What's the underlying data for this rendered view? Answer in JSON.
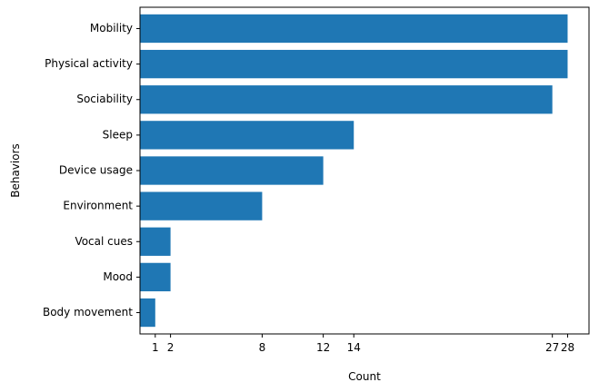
{
  "chart_data": {
    "type": "bar",
    "orientation": "horizontal",
    "categories": [
      "Mobility",
      "Physical activity",
      "Sociability",
      "Sleep",
      "Device usage",
      "Environment",
      "Vocal cues",
      "Mood",
      "Body movement"
    ],
    "values": [
      28,
      28,
      27,
      14,
      12,
      8,
      2,
      2,
      1
    ],
    "xticks": [
      1,
      2,
      8,
      12,
      14,
      27,
      28
    ],
    "xlabel": "Count",
    "ylabel": "Behaviors",
    "xlim": [
      0,
      29.4
    ],
    "grid": false,
    "bar_color": "#1f77b4"
  }
}
